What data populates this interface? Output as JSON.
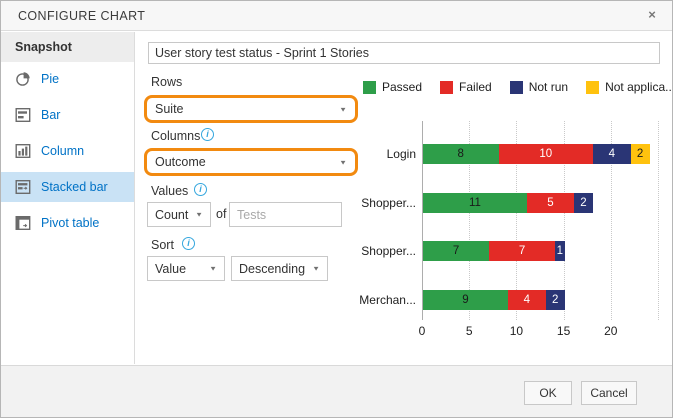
{
  "dialog": {
    "title": "CONFIGURE CHART"
  },
  "icons": {
    "close": "×",
    "dropdown_arrow": "▼",
    "info": "i"
  },
  "sidebar": {
    "header": "Snapshot",
    "items": [
      {
        "label": "Pie",
        "selected": false
      },
      {
        "label": "Bar",
        "selected": false
      },
      {
        "label": "Column",
        "selected": false
      },
      {
        "label": "Stacked bar",
        "selected": true
      },
      {
        "label": "Pivot table",
        "selected": false
      }
    ]
  },
  "form": {
    "chart_name": "User story test status - Sprint 1 Stories",
    "rows_label": "Rows",
    "rows_value": "Suite",
    "columns_label": "Columns",
    "columns_value": "Outcome",
    "values_label": "Values",
    "values_aggregation": "Count",
    "values_of": "of",
    "values_placeholder": "Tests",
    "sort_label": "Sort",
    "sort_field": "Value",
    "sort_direction": "Descending"
  },
  "footer": {
    "ok": "OK",
    "cancel": "Cancel"
  },
  "colors": {
    "highlight_orange": "#f28a10",
    "link_blue": "#0072c6",
    "selected_item_bg": "#c9e2f5",
    "info_blue": "#35a7de"
  },
  "chart_data": {
    "type": "bar",
    "orientation": "horizontal-stacked",
    "title": "",
    "categories": [
      "Login",
      "Shopper...",
      "Shopper...",
      "Merchan..."
    ],
    "series": [
      {
        "name": "Passed",
        "legend_label": "Passed",
        "color": "#2e9e49",
        "label_color": "#1a1a1a",
        "values": [
          8,
          11,
          7,
          9
        ]
      },
      {
        "name": "Failed",
        "legend_label": "Failed",
        "color": "#e32b26",
        "label_color": "#ffffff",
        "values": [
          10,
          5,
          7,
          4
        ]
      },
      {
        "name": "Not run",
        "legend_label": "Not run",
        "color": "#2a3575",
        "label_color": "#ffffff",
        "values": [
          4,
          2,
          1,
          2
        ]
      },
      {
        "name": "Not applicable",
        "legend_label": "Not applica...",
        "color": "#ffc20e",
        "label_color": "#1a1a1a",
        "values": [
          2,
          0,
          0,
          0
        ]
      }
    ],
    "x_ticks": [
      0,
      5,
      10,
      15,
      20
    ],
    "gridlines": [
      5,
      10,
      15,
      20,
      25
    ],
    "xlim": [
      0,
      25
    ],
    "legend_position": "top",
    "value_labels": true
  }
}
